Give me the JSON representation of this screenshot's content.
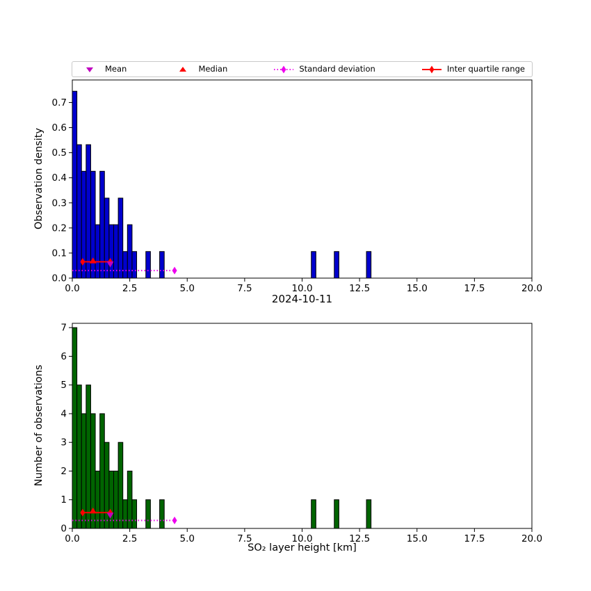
{
  "figure": {
    "title": "2024-10-11"
  },
  "colors": {
    "density_bar": "#0000cd",
    "count_bar": "#006400",
    "bar_edge": "#000000",
    "mean": "#bf00bf",
    "median": "#ff0000",
    "std": "#ee00ee",
    "iqr": "#ff0000",
    "axis": "#000000",
    "background": "#ffffff"
  },
  "legend": {
    "items": [
      {
        "label": "Mean",
        "marker": "triangle-down",
        "color": "#bf00bf"
      },
      {
        "label": "Median",
        "marker": "triangle-up",
        "color": "#ff0000"
      },
      {
        "label": "Standard deviation",
        "marker": "diamond-dotted-line",
        "color": "#ee00ee"
      },
      {
        "label": "Inter quartile range",
        "marker": "diamond-solid-line",
        "color": "#ff0000"
      }
    ]
  },
  "stats": {
    "mean": 1.65,
    "median": 0.9,
    "q1": 0.45,
    "q3": 1.65,
    "std_range": [
      0.0,
      4.45
    ]
  },
  "chart_data": [
    {
      "type": "bar",
      "subtype": "histogram",
      "title": "",
      "ylabel": "Observation density",
      "xlabel": "",
      "bar_color": "#0000cd",
      "bar_edge_color": "#000000",
      "bin_width": 0.2,
      "bins": [
        0.0,
        0.2,
        0.4,
        0.6,
        0.8,
        1.0,
        1.2,
        1.4,
        1.6,
        1.8,
        2.0,
        2.2,
        2.4,
        2.6,
        3.2,
        3.8,
        10.4,
        11.4,
        12.8
      ],
      "values": [
        0.745,
        0.532,
        0.426,
        0.532,
        0.426,
        0.213,
        0.426,
        0.319,
        0.213,
        0.213,
        0.319,
        0.106,
        0.213,
        0.106,
        0.106,
        0.106,
        0.106,
        0.106,
        0.106
      ],
      "xlim": [
        0,
        20
      ],
      "ylim": [
        0,
        0.79
      ],
      "xticks": [
        0,
        2.5,
        5,
        7.5,
        10,
        12.5,
        15,
        17.5,
        20
      ],
      "xtick_labels": [
        "0.0",
        "2.5",
        "5.0",
        "7.5",
        "10.0",
        "12.5",
        "15.0",
        "17.5",
        "20.0"
      ],
      "yticks": [
        0,
        0.1,
        0.2,
        0.3,
        0.4,
        0.5,
        0.6,
        0.7
      ],
      "ytick_labels": [
        "0.0",
        "0.1",
        "0.2",
        "0.3",
        "0.4",
        "0.5",
        "0.6",
        "0.7"
      ],
      "grid": false,
      "legend_position": "above",
      "annotations": {
        "mean": {
          "x": 1.65,
          "y": 0.055
        },
        "median": {
          "x": 0.9,
          "y": 0.07
        },
        "iqr": {
          "x1": 0.45,
          "x2": 1.65,
          "y": 0.065
        },
        "std": {
          "x1": 0.0,
          "x2": 4.45,
          "y": 0.03
        }
      }
    },
    {
      "type": "bar",
      "subtype": "histogram",
      "title": "",
      "ylabel": "Number of observations",
      "xlabel": "SO₂ layer height [km]",
      "bar_color": "#006400",
      "bar_edge_color": "#000000",
      "bin_width": 0.2,
      "bins": [
        0.0,
        0.2,
        0.4,
        0.6,
        0.8,
        1.0,
        1.2,
        1.4,
        1.6,
        1.8,
        2.0,
        2.2,
        2.4,
        2.6,
        3.2,
        3.8,
        10.4,
        11.4,
        12.8
      ],
      "values": [
        7,
        5,
        4,
        5,
        4,
        2,
        4,
        3,
        2,
        2,
        3,
        1,
        2,
        1,
        1,
        1,
        1,
        1,
        1
      ],
      "xlim": [
        0,
        20
      ],
      "ylim": [
        0,
        7.15
      ],
      "xticks": [
        0,
        2.5,
        5,
        7.5,
        10,
        12.5,
        15,
        17.5,
        20
      ],
      "xtick_labels": [
        "0.0",
        "2.5",
        "5.0",
        "7.5",
        "10.0",
        "12.5",
        "15.0",
        "17.5",
        "20.0"
      ],
      "yticks": [
        0,
        1,
        2,
        3,
        4,
        5,
        6,
        7
      ],
      "ytick_labels": [
        "0",
        "1",
        "2",
        "3",
        "4",
        "5",
        "6",
        "7"
      ],
      "grid": false,
      "annotations": {
        "mean": {
          "x": 1.65,
          "y": 0.45
        },
        "median": {
          "x": 0.9,
          "y": 0.62
        },
        "iqr": {
          "x1": 0.45,
          "x2": 1.65,
          "y": 0.55
        },
        "std": {
          "x1": 0.0,
          "x2": 4.45,
          "y": 0.28
        }
      }
    }
  ]
}
